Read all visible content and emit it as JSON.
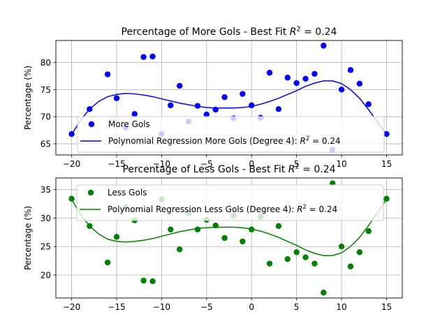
{
  "chart_data": [
    {
      "type": "scatter",
      "title": "Percentage of More Gols - Best Fit $R^2$ = 0.24",
      "title_text": "Percentage of More Gols - Best Fit ",
      "title_r": "R",
      "title_sup": "2",
      "title_tail": " = 0.24",
      "xlabel": "",
      "ylabel": "Percentage (%)",
      "xlim": [
        -21.75,
        16.75
      ],
      "ylim": [
        62.95,
        84.05
      ],
      "xticks": [
        -20,
        -15,
        -10,
        -5,
        0,
        5,
        10,
        15
      ],
      "yticks": [
        65,
        70,
        75,
        80
      ],
      "grid": true,
      "legend_position": "lower-left",
      "series": [
        {
          "name": "More Gols",
          "kind": "scatter",
          "color": "#0000ff",
          "x": [
            -20,
            -18,
            -16,
            -15,
            -14,
            -13,
            -12,
            -11,
            -10,
            -9,
            -8,
            -7,
            -6,
            -5,
            -4,
            -3,
            -2,
            -1,
            0,
            1,
            2,
            3,
            4,
            5,
            6,
            7,
            8,
            9,
            10,
            11,
            12,
            13,
            15
          ],
          "y": [
            66.8,
            71.4,
            77.8,
            73.4,
            68.0,
            70.5,
            81.0,
            81.1,
            66.8,
            72.1,
            75.7,
            69.1,
            72.0,
            70.4,
            71.3,
            73.6,
            69.7,
            74.2,
            72.1,
            69.8,
            78.1,
            71.4,
            77.2,
            76.2,
            77.0,
            77.9,
            83.1,
            63.9,
            75.0,
            78.6,
            76.1,
            72.3,
            66.8
          ]
        },
        {
          "name": "Polynomial Regression More Gols (Degree 4): $R^2 = 0.24$",
          "label_text": "Polynomial Regression More Gols (Degree 4): ",
          "label_r": "R",
          "label_sup": "2",
          "label_tail": " = 0.24",
          "kind": "line",
          "color": "#0000ff",
          "x": [
            -20,
            -19,
            -18,
            -17,
            -16,
            -15,
            -14,
            -13,
            -12,
            -11,
            -10,
            -9,
            -8,
            -7,
            -6,
            -5,
            -4,
            -3,
            -2,
            -1,
            0,
            1,
            2,
            3,
            4,
            5,
            6,
            7,
            8,
            9,
            10,
            11,
            12,
            13,
            14,
            15
          ],
          "y": [
            66.7,
            69.4,
            71.4,
            72.8,
            73.7,
            74.1,
            74.3,
            74.2,
            74.0,
            73.7,
            73.3,
            72.9,
            72.5,
            72.2,
            71.9,
            71.7,
            71.6,
            71.6,
            71.6,
            71.7,
            71.9,
            72.3,
            72.8,
            73.4,
            74.1,
            74.8,
            75.6,
            76.2,
            76.6,
            76.6,
            76.1,
            75.0,
            73.4,
            71.3,
            69.0,
            66.7
          ]
        }
      ]
    },
    {
      "type": "scatter",
      "title": "Percentage of Less Gols - Best Fit $R^2$ = 0.24",
      "title_text": "Percentage of Less Gols - Best Fit ",
      "title_r": "R",
      "title_sup": "2",
      "title_tail": " = 0.24",
      "xlabel": "",
      "ylabel": "Percentage (%)",
      "xlim": [
        -21.75,
        16.75
      ],
      "ylim": [
        15.95,
        37.05
      ],
      "xticks": [
        -20,
        -15,
        -10,
        -5,
        0,
        5,
        10,
        15
      ],
      "yticks": [
        20,
        25,
        30,
        35
      ],
      "grid": true,
      "legend_position": "upper-left",
      "series": [
        {
          "name": "Less Gols",
          "kind": "scatter",
          "color": "#008000",
          "x": [
            -20,
            -18,
            -16,
            -15,
            -14,
            -13,
            -12,
            -11,
            -10,
            -9,
            -8,
            -7,
            -6,
            -5,
            -4,
            -3,
            -2,
            -1,
            0,
            1,
            2,
            3,
            4,
            5,
            6,
            7,
            8,
            9,
            10,
            11,
            12,
            13,
            15
          ],
          "y": [
            33.4,
            28.6,
            22.2,
            26.7,
            31.9,
            29.6,
            19.0,
            18.9,
            33.3,
            28.0,
            24.5,
            30.9,
            28.0,
            29.7,
            28.7,
            26.5,
            30.4,
            25.9,
            28.0,
            30.2,
            22.0,
            28.6,
            22.8,
            24.0,
            23.1,
            22.0,
            16.9,
            36.1,
            25.0,
            21.5,
            24.0,
            27.7,
            33.4
          ]
        },
        {
          "name": "Polynomial Regression Less Gols (Degree 4): $R^2 = 0.24$",
          "label_text": "Polynomial Regression Less Gols (Degree 4): ",
          "label_r": "R",
          "label_sup": "2",
          "label_tail": " = 0.24",
          "kind": "line",
          "color": "#008000",
          "x": [
            -20,
            -19,
            -18,
            -17,
            -16,
            -15,
            -14,
            -13,
            -12,
            -11,
            -10,
            -9,
            -8,
            -7,
            -6,
            -5,
            -4,
            -3,
            -2,
            -1,
            0,
            1,
            2,
            3,
            4,
            5,
            6,
            7,
            8,
            9,
            10,
            11,
            12,
            13,
            14,
            15
          ],
          "y": [
            33.3,
            30.6,
            28.6,
            27.2,
            26.3,
            25.9,
            25.8,
            25.9,
            26.1,
            26.4,
            26.8,
            27.2,
            27.6,
            27.9,
            28.2,
            28.3,
            28.4,
            28.4,
            28.4,
            28.3,
            28.1,
            27.7,
            27.2,
            26.6,
            25.9,
            25.2,
            24.4,
            23.8,
            23.4,
            23.4,
            23.9,
            25.0,
            26.6,
            28.7,
            31.0,
            33.3
          ]
        }
      ]
    }
  ]
}
